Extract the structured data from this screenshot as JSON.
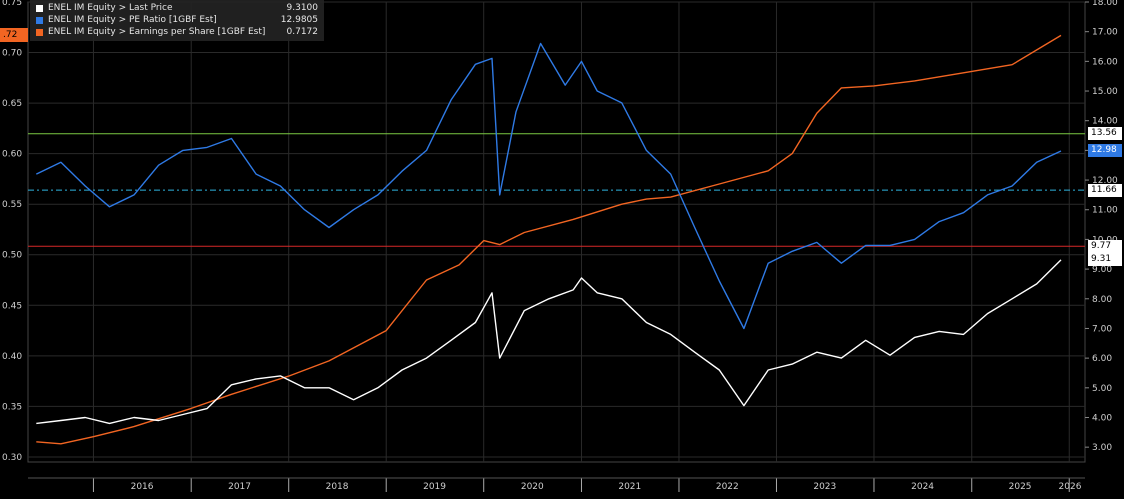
{
  "legend": [
    {
      "name": "ENEL IM Equity > Last Price",
      "value": "9.3100",
      "color": "#ffffff"
    },
    {
      "name": "ENEL IM Equity > PE Ratio [1GBF Est]",
      "value": "12.9805",
      "color": "#2f7ae5"
    },
    {
      "name": "ENEL IM Equity > Earnings per Share [1GBF Est]",
      "value": "0.7172",
      "color": "#f26522"
    }
  ],
  "left_marker": ".72",
  "right_badges": [
    {
      "text": "13.56",
      "value": 13.56,
      "bg": "#ffffff",
      "fg": "#000000"
    },
    {
      "text": "12.98",
      "value": 12.98,
      "bg": "#2f7ae5",
      "fg": "#ffffff"
    },
    {
      "text": "11.66",
      "value": 11.66,
      "bg": "#ffffff",
      "fg": "#000000"
    },
    {
      "text": "9.77",
      "value": 9.77,
      "bg": "#ffffff",
      "fg": "#000000"
    },
    {
      "text": "9.31",
      "value": 9.31,
      "bg": "#ffffff",
      "fg": "#000000"
    }
  ],
  "chart_data": {
    "type": "line",
    "x_axis": {
      "type": "date",
      "ticks": [
        "2016",
        "2017",
        "2018",
        "2019",
        "2020",
        "2021",
        "2022",
        "2023",
        "2024",
        "2025",
        "2026"
      ]
    },
    "left_axis": {
      "range": [
        0.295,
        0.75
      ],
      "ticks": [
        "0.30",
        "0.35",
        "0.40",
        "0.45",
        "0.50",
        "0.55",
        "0.60",
        "0.65",
        "0.70",
        "0.75"
      ]
    },
    "right_axis": {
      "range": [
        2.5,
        18.0
      ],
      "ticks": [
        "3.00",
        "4.00",
        "5.00",
        "6.00",
        "7.00",
        "8.00",
        "9.00",
        "10.00",
        "11.00",
        "12.00",
        "13.00",
        "14.00",
        "15.00",
        "16.00",
        "17.00",
        "18.00"
      ]
    },
    "grid": true,
    "reference_lines": [
      {
        "value": 13.56,
        "axis": "right",
        "color": "#7ac943",
        "style": "solid"
      },
      {
        "value": 11.66,
        "axis": "right",
        "color": "#2fb5e0",
        "style": "dashdot"
      },
      {
        "value": 9.77,
        "axis": "right",
        "color": "#d62828",
        "style": "solid"
      }
    ],
    "series": [
      {
        "name": "ENEL IM Equity > Earnings per Share [1GBF Est]",
        "axis": "left",
        "color": "#f26522",
        "points": [
          [
            "2015-06-01",
            0.315
          ],
          [
            "2015-09-01",
            0.313
          ],
          [
            "2016-01-01",
            0.32
          ],
          [
            "2016-06-01",
            0.33
          ],
          [
            "2017-01-01",
            0.348
          ],
          [
            "2017-06-01",
            0.362
          ],
          [
            "2018-01-01",
            0.38
          ],
          [
            "2018-06-01",
            0.395
          ],
          [
            "2019-01-01",
            0.425
          ],
          [
            "2019-06-01",
            0.475
          ],
          [
            "2019-10-01",
            0.49
          ],
          [
            "2020-01-01",
            0.514
          ],
          [
            "2020-03-01",
            0.51
          ],
          [
            "2020-06-01",
            0.522
          ],
          [
            "2020-12-01",
            0.535
          ],
          [
            "2021-06-01",
            0.55
          ],
          [
            "2021-09-01",
            0.555
          ],
          [
            "2021-12-01",
            0.557
          ],
          [
            "2022-06-01",
            0.57
          ],
          [
            "2022-12-01",
            0.583
          ],
          [
            "2023-03-01",
            0.6
          ],
          [
            "2023-06-01",
            0.64
          ],
          [
            "2023-09-01",
            0.665
          ],
          [
            "2024-01-01",
            0.667
          ],
          [
            "2024-06-01",
            0.672
          ],
          [
            "2024-12-01",
            0.68
          ],
          [
            "2025-06-01",
            0.688
          ],
          [
            "2025-12-01",
            0.717
          ]
        ]
      },
      {
        "name": "ENEL IM Equity > PE Ratio [1GBF Est]",
        "axis": "right",
        "color": "#2f7ae5",
        "points": [
          [
            "2015-06-01",
            12.2
          ],
          [
            "2015-09-01",
            12.6
          ],
          [
            "2015-12-01",
            11.8
          ],
          [
            "2016-03-01",
            11.1
          ],
          [
            "2016-06-01",
            11.5
          ],
          [
            "2016-09-01",
            12.5
          ],
          [
            "2016-12-01",
            13.0
          ],
          [
            "2017-03-01",
            13.1
          ],
          [
            "2017-06-01",
            13.4
          ],
          [
            "2017-09-01",
            12.2
          ],
          [
            "2017-12-01",
            11.8
          ],
          [
            "2018-03-01",
            11.0
          ],
          [
            "2018-06-01",
            10.4
          ],
          [
            "2018-09-01",
            11.0
          ],
          [
            "2018-12-01",
            11.5
          ],
          [
            "2019-03-01",
            12.3
          ],
          [
            "2019-06-01",
            13.0
          ],
          [
            "2019-09-01",
            14.7
          ],
          [
            "2019-12-01",
            15.9
          ],
          [
            "2020-02-01",
            16.1
          ],
          [
            "2020-03-01",
            11.5
          ],
          [
            "2020-05-01",
            14.3
          ],
          [
            "2020-08-01",
            16.6
          ],
          [
            "2020-11-01",
            15.2
          ],
          [
            "2021-01-01",
            16.0
          ],
          [
            "2021-03-01",
            15.0
          ],
          [
            "2021-06-01",
            14.6
          ],
          [
            "2021-09-01",
            13.0
          ],
          [
            "2021-12-01",
            12.2
          ],
          [
            "2022-03-01",
            10.4
          ],
          [
            "2022-06-01",
            8.6
          ],
          [
            "2022-09-01",
            7.0
          ],
          [
            "2022-12-01",
            9.2
          ],
          [
            "2023-03-01",
            9.6
          ],
          [
            "2023-06-01",
            9.9
          ],
          [
            "2023-09-01",
            9.2
          ],
          [
            "2023-12-01",
            9.8
          ],
          [
            "2024-03-01",
            9.8
          ],
          [
            "2024-06-01",
            10.0
          ],
          [
            "2024-09-01",
            10.6
          ],
          [
            "2024-12-01",
            10.9
          ],
          [
            "2025-03-01",
            11.5
          ],
          [
            "2025-06-01",
            11.8
          ],
          [
            "2025-09-01",
            12.6
          ],
          [
            "2025-12-01",
            12.98
          ]
        ]
      },
      {
        "name": "ENEL IM Equity > Last Price",
        "axis": "right",
        "color": "#ffffff",
        "points": [
          [
            "2015-06-01",
            3.8
          ],
          [
            "2015-09-01",
            3.9
          ],
          [
            "2015-12-01",
            4.0
          ],
          [
            "2016-03-01",
            3.8
          ],
          [
            "2016-06-01",
            4.0
          ],
          [
            "2016-09-01",
            3.9
          ],
          [
            "2016-12-01",
            4.1
          ],
          [
            "2017-03-01",
            4.3
          ],
          [
            "2017-06-01",
            5.1
          ],
          [
            "2017-09-01",
            5.3
          ],
          [
            "2017-12-01",
            5.4
          ],
          [
            "2018-03-01",
            5.0
          ],
          [
            "2018-06-01",
            5.0
          ],
          [
            "2018-09-01",
            4.6
          ],
          [
            "2018-12-01",
            5.0
          ],
          [
            "2019-03-01",
            5.6
          ],
          [
            "2019-06-01",
            6.0
          ],
          [
            "2019-09-01",
            6.6
          ],
          [
            "2019-12-01",
            7.2
          ],
          [
            "2020-02-01",
            8.2
          ],
          [
            "2020-03-01",
            6.0
          ],
          [
            "2020-06-01",
            7.6
          ],
          [
            "2020-09-01",
            8.0
          ],
          [
            "2020-12-01",
            8.3
          ],
          [
            "2021-01-01",
            8.7
          ],
          [
            "2021-03-01",
            8.2
          ],
          [
            "2021-06-01",
            8.0
          ],
          [
            "2021-09-01",
            7.2
          ],
          [
            "2021-12-01",
            6.8
          ],
          [
            "2022-03-01",
            6.2
          ],
          [
            "2022-06-01",
            5.6
          ],
          [
            "2022-09-01",
            4.4
          ],
          [
            "2022-12-01",
            5.6
          ],
          [
            "2023-03-01",
            5.8
          ],
          [
            "2023-06-01",
            6.2
          ],
          [
            "2023-09-01",
            6.0
          ],
          [
            "2023-12-01",
            6.6
          ],
          [
            "2024-03-01",
            6.1
          ],
          [
            "2024-06-01",
            6.7
          ],
          [
            "2024-09-01",
            6.9
          ],
          [
            "2024-12-01",
            6.8
          ],
          [
            "2025-03-01",
            7.5
          ],
          [
            "2025-06-01",
            8.0
          ],
          [
            "2025-09-01",
            8.5
          ],
          [
            "2025-12-01",
            9.31
          ]
        ]
      }
    ]
  }
}
